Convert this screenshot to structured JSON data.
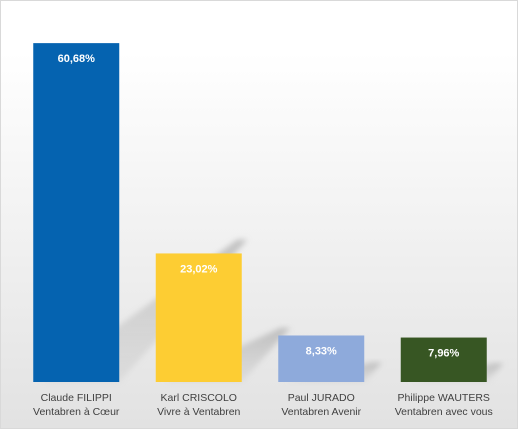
{
  "chart_data": {
    "type": "bar",
    "categories": [
      [
        "Claude FILIPPI",
        "Ventabren à Cœur"
      ],
      [
        "Karl CRISCOLO",
        "Vivre à Ventabren"
      ],
      [
        "Paul JURADO",
        "Ventabren Avenir"
      ],
      [
        "Philippe WAUTERS",
        "Ventabren avec vous"
      ]
    ],
    "values": [
      60.68,
      23.02,
      8.33,
      7.96
    ],
    "value_labels": [
      "60,68%",
      "23,02%",
      "8,33%",
      "7,96%"
    ],
    "colors": [
      "#0563b0",
      "#fdcd33",
      "#8eaadb",
      "#375623"
    ],
    "ylim": [
      0,
      65
    ],
    "title": "",
    "xlabel": "",
    "ylabel": "",
    "grid": false,
    "legend": "none"
  }
}
